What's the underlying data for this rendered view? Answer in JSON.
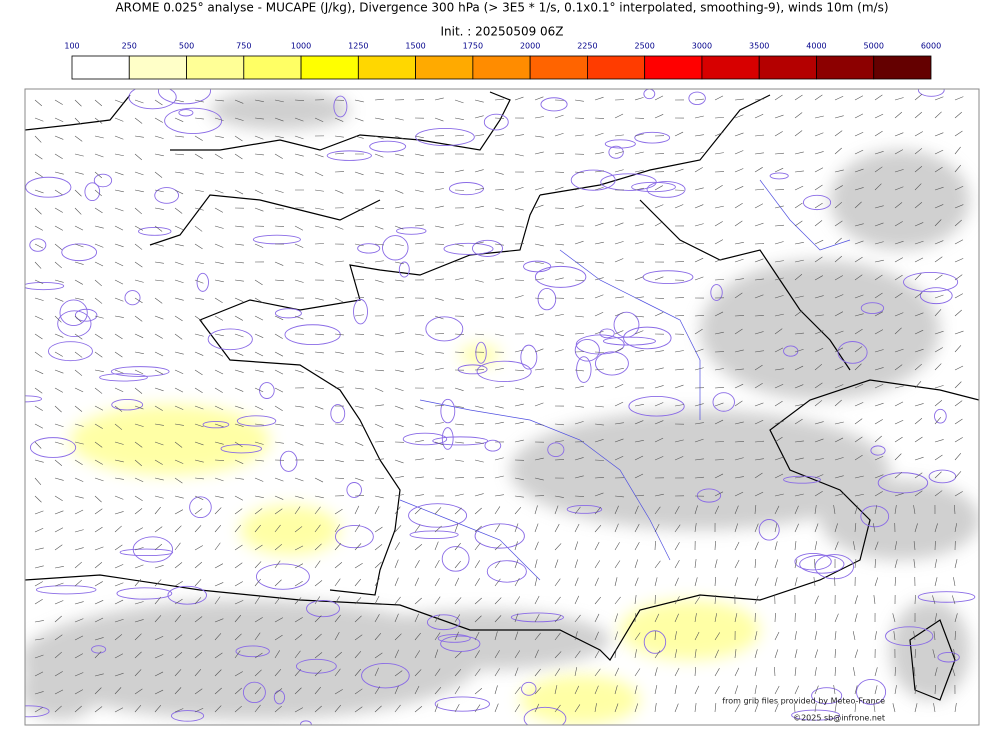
{
  "header": {
    "title": "AROME 0.025° analyse - MUCAPE (J/kg), Divergence 300 hPa (> 3E5 * 1/s, 0.1x0.1° interpolated, smoothing-9), winds 10m (m/s)",
    "init": "Init. : 20250509 06Z"
  },
  "colorbar": {
    "ticks": [
      100,
      250,
      500,
      750,
      1000,
      1250,
      1500,
      1750,
      2000,
      2250,
      2500,
      3000,
      3500,
      4000,
      5000,
      6000
    ],
    "colors": [
      "#ffffff",
      "#ffffc8",
      "#ffff96",
      "#ffff64",
      "#ffff00",
      "#ffd700",
      "#ffaa00",
      "#ff8c00",
      "#ff6400",
      "#ff3c00",
      "#ff0000",
      "#d70000",
      "#b40000",
      "#8c0000",
      "#640000"
    ]
  },
  "credits": {
    "source": "from grib files provided by Meteo-France",
    "copyright": "©2025 sb@infrone.net"
  }
}
